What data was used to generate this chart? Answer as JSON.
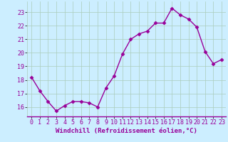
{
  "x": [
    0,
    1,
    2,
    3,
    4,
    5,
    6,
    7,
    8,
    9,
    10,
    11,
    12,
    13,
    14,
    15,
    16,
    17,
    18,
    19,
    20,
    21,
    22,
    23
  ],
  "y": [
    18.2,
    17.2,
    16.4,
    15.7,
    16.1,
    16.4,
    16.4,
    16.3,
    16.0,
    17.4,
    18.3,
    19.9,
    21.0,
    21.4,
    21.6,
    22.2,
    22.2,
    23.3,
    22.8,
    22.5,
    21.9,
    20.1,
    19.2,
    19.5
  ],
  "line_color": "#990099",
  "marker": "D",
  "marker_size": 2.5,
  "line_width": 1.0,
  "background_color": "#cceeff",
  "grid_color": "#aaccbb",
  "xlabel": "Windchill (Refroidissement éolien,°C)",
  "xlabel_fontsize": 6.5,
  "tick_fontsize": 6,
  "ylim": [
    15.3,
    23.8
  ],
  "xlim": [
    -0.5,
    23.5
  ],
  "yticks": [
    16,
    17,
    18,
    19,
    20,
    21,
    22,
    23
  ],
  "xticks": [
    0,
    1,
    2,
    3,
    4,
    5,
    6,
    7,
    8,
    9,
    10,
    11,
    12,
    13,
    14,
    15,
    16,
    17,
    18,
    19,
    20,
    21,
    22,
    23
  ]
}
